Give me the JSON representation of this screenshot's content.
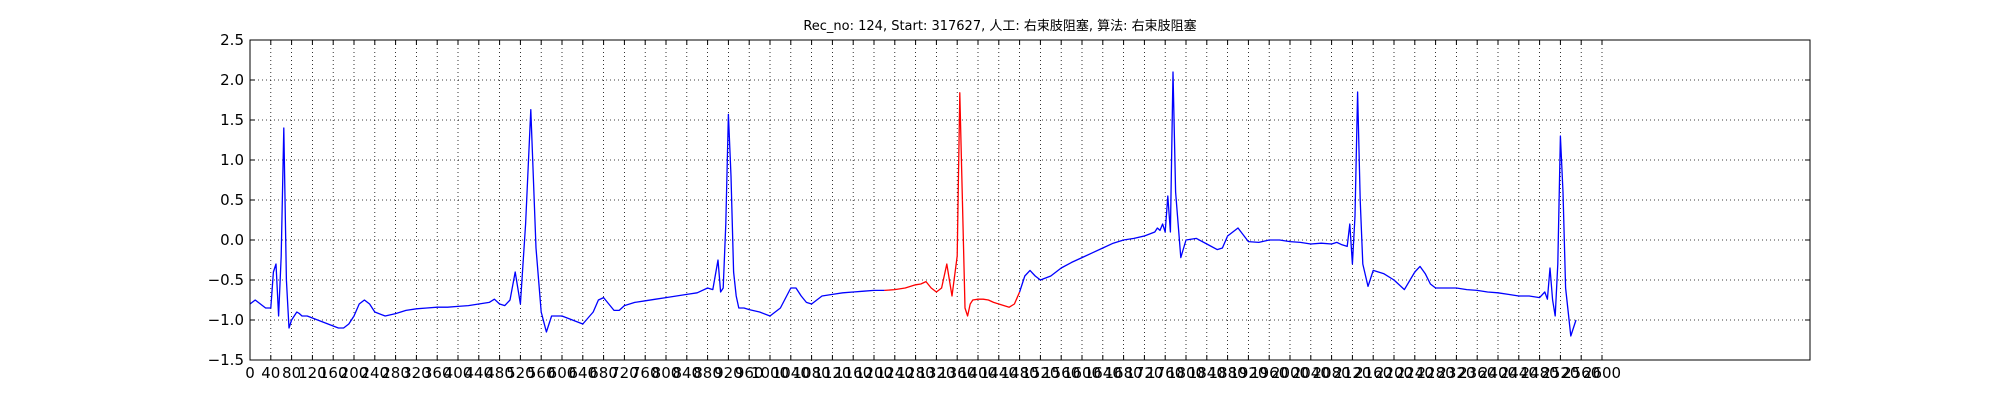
{
  "chart_data": {
    "type": "line",
    "title": "Rec_no: 124, Start: 317627, 人工: 右束肢阻塞, 算法: 右束肢阻塞",
    "xlabel": "",
    "ylabel": "",
    "xlim": [
      0,
      3600
    ],
    "ylim": [
      -1.5,
      2.5
    ],
    "grid": true,
    "y_ticks": [
      -1.5,
      -1.0,
      -0.5,
      0.0,
      0.5,
      1.0,
      1.5,
      2.0,
      2.5
    ],
    "y_tick_labels": [
      "−1.5",
      "−1.0",
      "−0.5",
      "0.0",
      "0.5",
      "1.0",
      "1.5",
      "2.0",
      "2.5"
    ],
    "x_ticks": [
      0,
      40,
      80,
      120,
      160,
      200,
      240,
      280,
      320,
      360,
      400,
      440,
      480,
      520,
      560,
      600,
      640,
      680,
      720,
      760,
      800,
      840,
      880,
      920,
      960,
      1000,
      1040,
      1080,
      1120,
      1160,
      1200,
      1240,
      1280,
      1320,
      1360,
      1400,
      1440,
      1480,
      1520,
      1560,
      1600,
      1640,
      1680,
      1720,
      1760,
      1800,
      1840,
      1880,
      1920,
      1960,
      2000,
      2040,
      2080,
      2120,
      2160,
      2200,
      2240,
      2280,
      2320,
      2360,
      2400,
      2440,
      2480,
      2520,
      2560,
      2600
    ],
    "x_tick_labels": [
      "0",
      "40",
      "80",
      "120",
      "160",
      "200",
      "240",
      "280",
      "320",
      "360",
      "400",
      "440",
      "480",
      "520",
      "560",
      "600",
      "640",
      "680",
      "720",
      "760",
      "800",
      "840",
      "880",
      "920",
      "960",
      "1000",
      "1040",
      "1080",
      "1120",
      "1160",
      "1200",
      "1240",
      "1280",
      "1320",
      "1360",
      "1400",
      "1440",
      "1480",
      "1520",
      "1560",
      "1600",
      "1640",
      "1680",
      "1720",
      "1760",
      "1800",
      "1840",
      "1880",
      "1920",
      "1960",
      "2000",
      "2040",
      "2080",
      "2120",
      "2160",
      "2200",
      "2240",
      "2280",
      "2320",
      "2360",
      "2400",
      "2440",
      "2480",
      "2520",
      "2560",
      "2600"
    ],
    "series": [
      {
        "color": "#0000ff",
        "x": [
          0,
          10,
          20,
          30,
          40,
          45,
          50,
          55,
          60,
          65,
          70,
          75,
          80,
          85,
          90,
          95,
          100,
          110,
          130,
          150,
          170,
          180,
          190,
          200,
          210,
          220,
          230,
          240,
          260,
          280,
          300,
          320,
          340,
          360,
          380,
          400,
          420,
          440,
          460,
          470,
          480,
          490,
          500,
          510,
          520,
          530,
          540,
          550,
          560,
          570,
          580,
          600,
          620,
          640,
          660,
          670,
          680,
          690,
          700,
          710,
          720,
          740,
          760,
          780,
          800,
          820,
          840,
          860,
          880,
          890,
          900,
          905,
          910,
          915,
          920,
          925,
          930,
          935,
          940,
          950,
          960,
          980,
          1000,
          1020,
          1040,
          1050,
          1060,
          1070,
          1080,
          1090,
          1100,
          1120,
          1140,
          1160,
          1180,
          1200,
          1220
        ],
        "y": [
          -0.8,
          -0.75,
          -0.8,
          -0.85,
          -0.85,
          -0.4,
          -0.3,
          -0.95,
          -0.2,
          1.4,
          -0.5,
          -1.1,
          -1.0,
          -0.95,
          -0.9,
          -0.92,
          -0.95,
          -0.95,
          -1.0,
          -1.05,
          -1.1,
          -1.1,
          -1.05,
          -0.95,
          -0.8,
          -0.75,
          -0.8,
          -0.9,
          -0.95,
          -0.92,
          -0.88,
          -0.86,
          -0.85,
          -0.84,
          -0.84,
          -0.83,
          -0.82,
          -0.8,
          -0.78,
          -0.74,
          -0.8,
          -0.82,
          -0.75,
          -0.4,
          -0.8,
          0.2,
          1.63,
          -0.1,
          -0.9,
          -1.15,
          -0.95,
          -0.95,
          -1.0,
          -1.05,
          -0.9,
          -0.75,
          -0.72,
          -0.8,
          -0.88,
          -0.88,
          -0.82,
          -0.78,
          -0.76,
          -0.74,
          -0.72,
          -0.7,
          -0.68,
          -0.66,
          -0.6,
          -0.62,
          -0.25,
          -0.65,
          -0.6,
          0.2,
          1.57,
          0.8,
          -0.4,
          -0.7,
          -0.85,
          -0.85,
          -0.87,
          -0.9,
          -0.95,
          -0.85,
          -0.6,
          -0.6,
          -0.7,
          -0.78,
          -0.8,
          -0.75,
          -0.7,
          -0.68,
          -0.66,
          -0.65,
          -0.64,
          -0.63,
          -0.63
        ]
      },
      {
        "color": "#ff0000",
        "x": [
          1220,
          1240,
          1260,
          1280,
          1290,
          1300,
          1310,
          1320,
          1330,
          1340,
          1350,
          1360,
          1365,
          1370,
          1375,
          1380,
          1385,
          1390,
          1400,
          1410,
          1420,
          1430,
          1440,
          1450,
          1460,
          1470,
          1480
        ],
        "y": [
          -0.63,
          -0.62,
          -0.6,
          -0.56,
          -0.55,
          -0.52,
          -0.6,
          -0.65,
          -0.6,
          -0.3,
          -0.7,
          -0.2,
          1.84,
          0.5,
          -0.85,
          -0.95,
          -0.8,
          -0.75,
          -0.74,
          -0.74,
          -0.75,
          -0.78,
          -0.8,
          -0.82,
          -0.84,
          -0.8,
          -0.65
        ]
      },
      {
        "color": "#0000ff",
        "x": [
          1480,
          1490,
          1500,
          1510,
          1520,
          1540,
          1560,
          1580,
          1600,
          1620,
          1640,
          1660,
          1680,
          1700,
          1720,
          1740,
          1745,
          1750,
          1755,
          1760,
          1765,
          1770,
          1775,
          1780,
          1790,
          1800,
          1820,
          1840,
          1860,
          1870,
          1880,
          1900,
          1920,
          1940,
          1960,
          1980,
          2000,
          2020,
          2040,
          2060,
          2080,
          2090,
          2100,
          2110,
          2115,
          2120,
          2125,
          2130,
          2135,
          2140,
          2150,
          2160,
          2180,
          2200,
          2220,
          2240,
          2250,
          2260,
          2270,
          2280,
          2300,
          2320,
          2340,
          2360,
          2380,
          2400,
          2420,
          2440,
          2460,
          2480,
          2490,
          2495,
          2500,
          2505,
          2510,
          2515,
          2520,
          2525,
          2530,
          2540,
          2550
        ],
        "y": [
          -0.65,
          -0.45,
          -0.38,
          -0.45,
          -0.5,
          -0.45,
          -0.35,
          -0.28,
          -0.22,
          -0.16,
          -0.1,
          -0.04,
          0.0,
          0.02,
          0.05,
          0.1,
          0.15,
          0.12,
          0.2,
          0.1,
          0.55,
          0.1,
          2.1,
          0.6,
          -0.22,
          0.0,
          0.02,
          -0.05,
          -0.12,
          -0.1,
          0.05,
          0.15,
          -0.02,
          -0.03,
          0.0,
          0.0,
          -0.02,
          -0.03,
          -0.05,
          -0.04,
          -0.05,
          -0.03,
          -0.06,
          -0.08,
          0.2,
          -0.3,
          0.3,
          1.85,
          0.5,
          -0.3,
          -0.58,
          -0.38,
          -0.42,
          -0.5,
          -0.62,
          -0.4,
          -0.33,
          -0.42,
          -0.55,
          -0.6,
          -0.6,
          -0.6,
          -0.62,
          -0.63,
          -0.65,
          -0.66,
          -0.68,
          -0.7,
          -0.7,
          -0.72,
          -0.65,
          -0.74,
          -0.35,
          -0.75,
          -0.95,
          -0.3,
          1.3,
          0.6,
          -0.6,
          -1.2,
          -1.0
        ]
      }
    ]
  }
}
